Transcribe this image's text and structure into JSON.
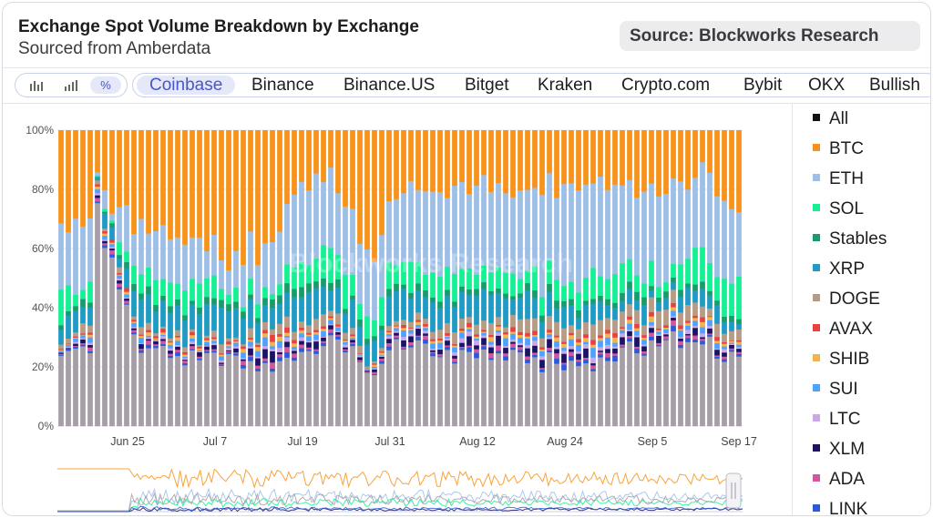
{
  "header": {
    "title": "Exchange Spot Volume Breakdown by Exchange",
    "subtitle": "Sourced from Amberdata",
    "source": "Source: Blockworks Research"
  },
  "toolbar": {
    "modes": [
      {
        "name": "bar-chart-mode",
        "icon": "bar-chart-icon",
        "active": false
      },
      {
        "name": "stacked-bar-mode",
        "icon": "stacked-bar-icon",
        "active": false
      },
      {
        "name": "percent-mode",
        "label": "%",
        "icon": "percent-icon",
        "active": true
      }
    ],
    "tabs": [
      "Coinbase",
      "Binance",
      "Binance.US",
      "Bitget",
      "Kraken",
      "Crypto.com",
      "Bybit",
      "OKX",
      "Bullish"
    ],
    "active_tab": "Coinbase"
  },
  "watermark": "Blockworks Research",
  "legend": [
    {
      "label": "All",
      "color": "#111111"
    },
    {
      "label": "BTC",
      "color": "#f7931a"
    },
    {
      "label": "ETH",
      "color": "#9dbfe6"
    },
    {
      "label": "SOL",
      "color": "#14f195"
    },
    {
      "label": "Stables",
      "color": "#1a9b6c"
    },
    {
      "label": "XRP",
      "color": "#1e9bc4"
    },
    {
      "label": "DOGE",
      "color": "#b89b83"
    },
    {
      "label": "AVAX",
      "color": "#e84142"
    },
    {
      "label": "SHIB",
      "color": "#f3b44f"
    },
    {
      "label": "SUI",
      "color": "#4da2ff"
    },
    {
      "label": "LTC",
      "color": "#c9a7e8"
    },
    {
      "label": "XLM",
      "color": "#1b1464"
    },
    {
      "label": "ADA",
      "color": "#d0569f"
    },
    {
      "label": "LINK",
      "color": "#2a5ada"
    }
  ],
  "chart_data": {
    "type": "bar",
    "stacked": true,
    "normalized_percent": true,
    "y_ticks": [
      "0%",
      "20%",
      "40%",
      "60%",
      "80%",
      "100%"
    ],
    "ylim": [
      0,
      100
    ],
    "x_ticks": [
      "Jun 25",
      "Jul 7",
      "Jul 19",
      "Jul 31",
      "Aug 12",
      "Aug 24",
      "Sep 5",
      "Sep 17"
    ],
    "x_range": [
      "2024-06-16",
      "2024-09-17"
    ],
    "grid": true,
    "legend_position": "right",
    "series_order": [
      "Other",
      "LINK",
      "ADA",
      "XLM",
      "LTC",
      "SUI",
      "SHIB",
      "AVAX",
      "DOGE",
      "XRP",
      "Stables",
      "SOL",
      "ETH",
      "BTC"
    ],
    "other_color": "#a69ea6",
    "daily_samples": [
      {
        "date": "2024-06-16",
        "Other": 24,
        "small": 4,
        "DOGE": 2,
        "XRP": 6,
        "Stables": 2,
        "SOL": 8,
        "ETH": 24,
        "BTC": 30
      },
      {
        "date": "2024-06-20",
        "Other": 26,
        "small": 5,
        "DOGE": 2,
        "XRP": 8,
        "Stables": 2,
        "SOL": 5,
        "ETH": 18,
        "BTC": 34
      },
      {
        "date": "2024-06-21",
        "Other": 70,
        "small": 6,
        "DOGE": 0,
        "XRP": 2,
        "Stables": 0,
        "SOL": 2,
        "ETH": 2,
        "BTC": 18
      },
      {
        "date": "2024-06-27",
        "Other": 26,
        "small": 5,
        "DOGE": 2,
        "XRP": 9,
        "Stables": 2,
        "SOL": 5,
        "ETH": 16,
        "BTC": 35
      },
      {
        "date": "2024-07-04",
        "Other": 24,
        "small": 5,
        "DOGE": 2,
        "XRP": 10,
        "Stables": 2,
        "SOL": 7,
        "ETH": 13,
        "BTC": 37
      },
      {
        "date": "2024-07-11",
        "Other": 22,
        "small": 6,
        "DOGE": 2,
        "XRP": 9,
        "Stables": 2,
        "SOL": 4,
        "ETH": 12,
        "BTC": 43
      },
      {
        "date": "2024-07-14",
        "Other": 20,
        "small": 12,
        "DOGE": 2,
        "XRP": 6,
        "Stables": 2,
        "SOL": 2,
        "ETH": 18,
        "BTC": 38
      },
      {
        "date": "2024-07-19",
        "Other": 24,
        "small": 8,
        "DOGE": 3,
        "XRP": 10,
        "Stables": 3,
        "SOL": 8,
        "ETH": 26,
        "BTC": 18
      },
      {
        "date": "2024-07-24",
        "Other": 30,
        "small": 5,
        "DOGE": 3,
        "XRP": 8,
        "Stables": 2,
        "SOL": 10,
        "ETH": 24,
        "BTC": 18
      },
      {
        "date": "2024-07-28",
        "Other": 17,
        "small": 3,
        "DOGE": 2,
        "XRP": 7,
        "Stables": 2,
        "SOL": 6,
        "ETH": 21,
        "BTC": 42
      },
      {
        "date": "2024-08-02",
        "Other": 28,
        "small": 6,
        "DOGE": 2,
        "XRP": 9,
        "Stables": 2,
        "SOL": 8,
        "ETH": 27,
        "BTC": 18
      },
      {
        "date": "2024-08-08",
        "Other": 25,
        "small": 7,
        "DOGE": 3,
        "XRP": 10,
        "Stables": 2,
        "SOL": 7,
        "ETH": 27,
        "BTC": 19
      },
      {
        "date": "2024-08-16",
        "Other": 24,
        "small": 8,
        "DOGE": 3,
        "XRP": 8,
        "Stables": 2,
        "SOL": 6,
        "ETH": 29,
        "BTC": 20
      },
      {
        "date": "2024-08-24",
        "Other": 21,
        "small": 9,
        "DOGE": 4,
        "XRP": 6,
        "Stables": 2,
        "SOL": 7,
        "ETH": 32,
        "BTC": 19
      },
      {
        "date": "2024-08-31",
        "Other": 22,
        "small": 8,
        "DOGE": 4,
        "XRP": 5,
        "Stables": 2,
        "SOL": 8,
        "ETH": 30,
        "BTC": 21
      },
      {
        "date": "2024-09-07",
        "Other": 28,
        "small": 7,
        "DOGE": 5,
        "XRP": 4,
        "Stables": 2,
        "SOL": 6,
        "ETH": 28,
        "BTC": 20
      },
      {
        "date": "2024-09-12",
        "Other": 30,
        "small": 8,
        "DOGE": 4,
        "XRP": 5,
        "Stables": 2,
        "SOL": 10,
        "ETH": 26,
        "BTC": 15
      },
      {
        "date": "2024-09-17",
        "Other": 23,
        "small": 5,
        "DOGE": 3,
        "XRP": 4,
        "Stables": 2,
        "SOL": 12,
        "ETH": 23,
        "BTC": 28
      }
    ],
    "minimap": {
      "type": "line",
      "series": [
        "BTC",
        "ETH",
        "SOL",
        "Other"
      ],
      "note": "navigator overview of full history"
    }
  }
}
